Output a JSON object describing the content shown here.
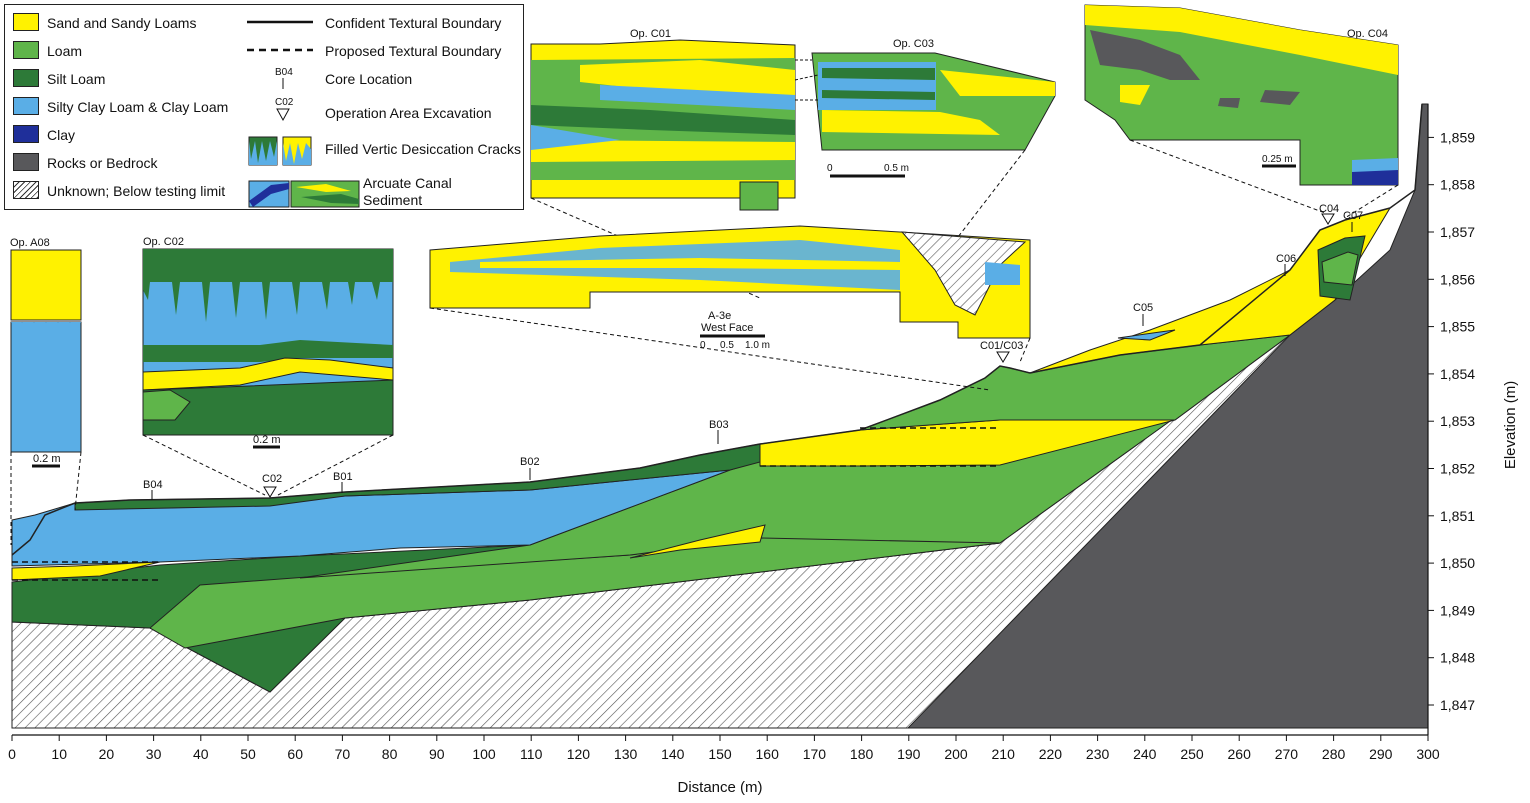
{
  "colors": {
    "sand": "#fff200",
    "loam": "#5fb54a",
    "silt_loam": "#2d7a38",
    "silty_clay": "#5aaee6",
    "clay": "#1f2f9a",
    "rock": "#58585b",
    "unknown": "hatch-gray",
    "line": "#111111"
  },
  "legend": {
    "sand": "Sand and Sandy Loams",
    "loam": "Loam",
    "silt_loam": "Silt Loam",
    "silty_clay": "Silty Clay Loam & Clay Loam",
    "clay": "Clay",
    "rock": "Rocks or Bedrock",
    "unknown": "Unknown; Below testing limit",
    "confident": "Confident Textural Boundary",
    "proposed": "Proposed Textural Boundary",
    "core_sym": "B04",
    "core": "Core Location",
    "op_sym": "C02",
    "op": "Operation Area Excavation",
    "cracks": "Filled Vertic Desiccation Cracks",
    "canal_1": "Arcuate Canal",
    "canal_2": "Sediment"
  },
  "insets": {
    "a08": "Op. A08",
    "a08_scale": "0.2 m",
    "c02": "Op. C02",
    "c02_scale": "0.2 m",
    "c01": "Op. C01",
    "c03": "Op. C03",
    "c03_scale_0": "0",
    "c03_scale_1": "0.5 m",
    "c04": "Op. C04",
    "c04_scale": "0.25 m",
    "a3e": "A-3e",
    "a3e_face": "West Face",
    "a3e_s0": "0",
    "a3e_s1": "0.5",
    "a3e_s2": "1.0 m"
  },
  "profile_labels": {
    "b04": "B04",
    "c02": "C02",
    "b01": "B01",
    "b02": "B02",
    "b03": "B03",
    "c01c03": "C01/C03",
    "c05": "C05",
    "c06": "C06",
    "c04": "C04",
    "c07": "C07"
  },
  "axes": {
    "xlabel": "Distance (m)",
    "ylabel": "Elevation (m)",
    "x_ticks": [
      "0",
      "10",
      "20",
      "30",
      "40",
      "50",
      "60",
      "70",
      "80",
      "90",
      "100",
      "110",
      "120",
      "130",
      "140",
      "150",
      "160",
      "170",
      "180",
      "190",
      "200",
      "210",
      "220",
      "230",
      "240",
      "250",
      "260",
      "270",
      "280",
      "290",
      "300"
    ],
    "y_ticks": [
      "1,847",
      "1,848",
      "1,849",
      "1,850",
      "1,851",
      "1,852",
      "1,853",
      "1,854",
      "1,855",
      "1,856",
      "1,857",
      "1,858",
      "1,859"
    ]
  }
}
